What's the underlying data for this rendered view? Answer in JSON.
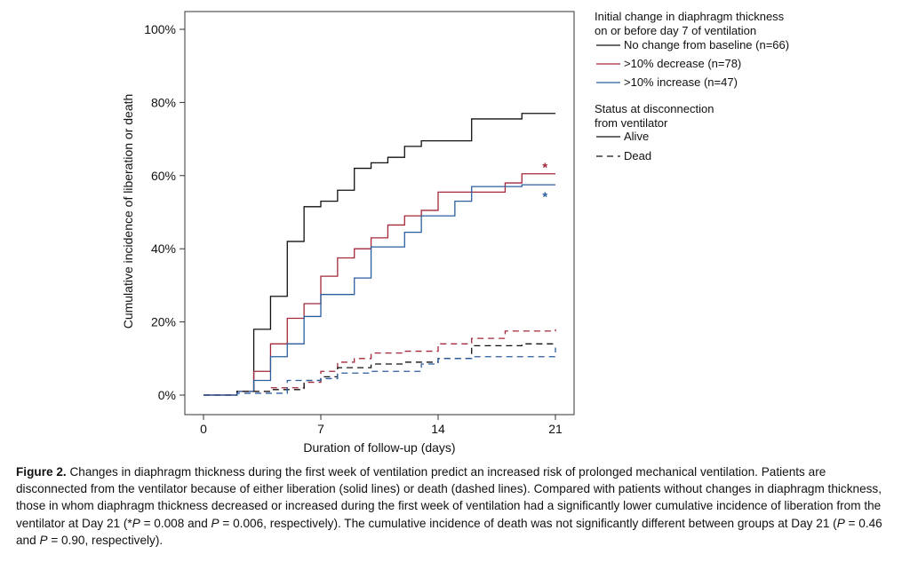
{
  "chart_data": {
    "type": "line",
    "subtype": "step",
    "xlabel": "Duration of follow-up (days)",
    "ylabel": "Cumulative incidence of liberation or death",
    "xlim": [
      0,
      21
    ],
    "ylim": [
      0,
      100
    ],
    "xticks": [
      "0",
      "7",
      "14",
      "21"
    ],
    "xtick_values": [
      0,
      7,
      14,
      21
    ],
    "yticks": [
      "0%",
      "20%",
      "40%",
      "60%",
      "80%",
      "100%"
    ],
    "ytick_values": [
      0,
      20,
      40,
      60,
      80,
      100
    ],
    "grid": false,
    "legend_position": "right",
    "legend_group1_title": [
      "Initial change in diaphragm thickness",
      "on or before day 7 of ventilation"
    ],
    "legend_group2_title": [
      "Status at disconnection",
      "from ventilator"
    ],
    "series": [
      {
        "name": "No change from baseline (n=66)",
        "group": "No change from baseline",
        "status": "Alive",
        "color": "#111111",
        "dashed": false,
        "x": [
          0,
          2,
          3,
          4,
          5,
          6,
          7,
          8,
          9,
          10,
          11,
          12,
          13,
          16,
          19,
          21
        ],
        "y": [
          0,
          1,
          18,
          27,
          42,
          51.5,
          53,
          56,
          62,
          63.5,
          65,
          68,
          69.5,
          75.5,
          77,
          77
        ]
      },
      {
        "name": ">10% decrease (n=78)",
        "group": ">10% decrease",
        "status": "Alive",
        "color": "#a3283a",
        "dashed": false,
        "x": [
          0,
          2,
          3,
          4,
          5,
          6,
          7,
          8,
          9,
          10,
          11,
          12,
          13,
          14,
          18,
          19,
          21
        ],
        "y": [
          0,
          1,
          6.5,
          14,
          21,
          25,
          32.5,
          37.5,
          40,
          43,
          46.5,
          49,
          50.5,
          55.5,
          58,
          60.5,
          60.5
        ]
      },
      {
        "name": ">10% increase (n=47)",
        "group": ">10% increase",
        "status": "Alive",
        "color": "#2c5fa0",
        "dashed": false,
        "x": [
          0,
          2,
          3,
          4,
          5,
          6,
          7,
          9,
          10,
          12,
          13,
          15,
          16,
          18,
          19,
          21
        ],
        "y": [
          0,
          1,
          4,
          10.5,
          14,
          21.5,
          27.5,
          32,
          40.5,
          44.5,
          49,
          53,
          57,
          57,
          57.5,
          57.5
        ]
      },
      {
        "name": ">10% decrease — Dead",
        "group": ">10% decrease",
        "status": "Dead",
        "color": "#a3283a",
        "dashed": true,
        "x": [
          0,
          2,
          4,
          6,
          7,
          8,
          9,
          10,
          12,
          14,
          16,
          18,
          21
        ],
        "y": [
          0,
          1,
          2,
          3.5,
          6.5,
          9,
          10,
          11.5,
          12,
          14,
          15.5,
          17.5,
          18
        ]
      },
      {
        "name": "No change from baseline — Dead",
        "group": "No change from baseline",
        "status": "Dead",
        "color": "#111111",
        "dashed": true,
        "x": [
          0,
          2,
          4,
          6,
          7,
          8,
          10,
          12,
          14,
          16,
          19,
          21
        ],
        "y": [
          0,
          1,
          1.5,
          4,
          5,
          7.5,
          8.5,
          9,
          10,
          13.5,
          14,
          13.5
        ]
      },
      {
        "name": ">10% increase — Dead",
        "group": ">10% increase",
        "status": "Dead",
        "color": "#2c5fa0",
        "dashed": true,
        "x": [
          0,
          2,
          5,
          7,
          8,
          10,
          13,
          14,
          16,
          20,
          21
        ],
        "y": [
          0,
          0.5,
          4,
          4.5,
          6,
          6.5,
          8.5,
          10,
          10.5,
          10.5,
          13
        ]
      }
    ],
    "legend_entries": [
      {
        "label": "No change from baseline (n=66)",
        "color": "#111111",
        "dashed": false
      },
      {
        "label": ">10% decrease (n=78)",
        "color": "#a3283a",
        "dashed": false
      },
      {
        "label": ">10% increase (n=47)",
        "color": "#2c5fa0",
        "dashed": false
      },
      {
        "label": "Alive",
        "color": "#111111",
        "dashed": false
      },
      {
        "label": "Dead",
        "color": "#111111",
        "dashed": true
      }
    ],
    "annotations": [
      {
        "text": "*",
        "x": 20.7,
        "y": 63,
        "color": "#a3283a"
      },
      {
        "text": "*",
        "x": 20.7,
        "y": 55,
        "color": "#2c5fa0"
      }
    ]
  },
  "caption": {
    "label": "Figure 2.",
    "part1": "Changes in diaphragm thickness during the first week of ventilation predict an increased risk of prolonged mechanical ventilation. Patients are disconnected from the ventilator because of either liberation (solid lines) or death (dashed lines). Compared with patients without changes in diaphragm thickness, those in whom diaphragm thickness decreased or increased during the first week of ventilation had a significantly lower cumulative incidence of liberation from the ventilator at Day 21 (*",
    "p1": "P",
    "part2": " = 0.008 and ",
    "p2": "P",
    "part3": " = 0.006, respectively). The cumulative incidence of death was not significantly different between groups at Day 21 (",
    "p3": "P",
    "part4": " = 0.46 and ",
    "p4": "P",
    "part5": " = 0.90, respectively)."
  }
}
